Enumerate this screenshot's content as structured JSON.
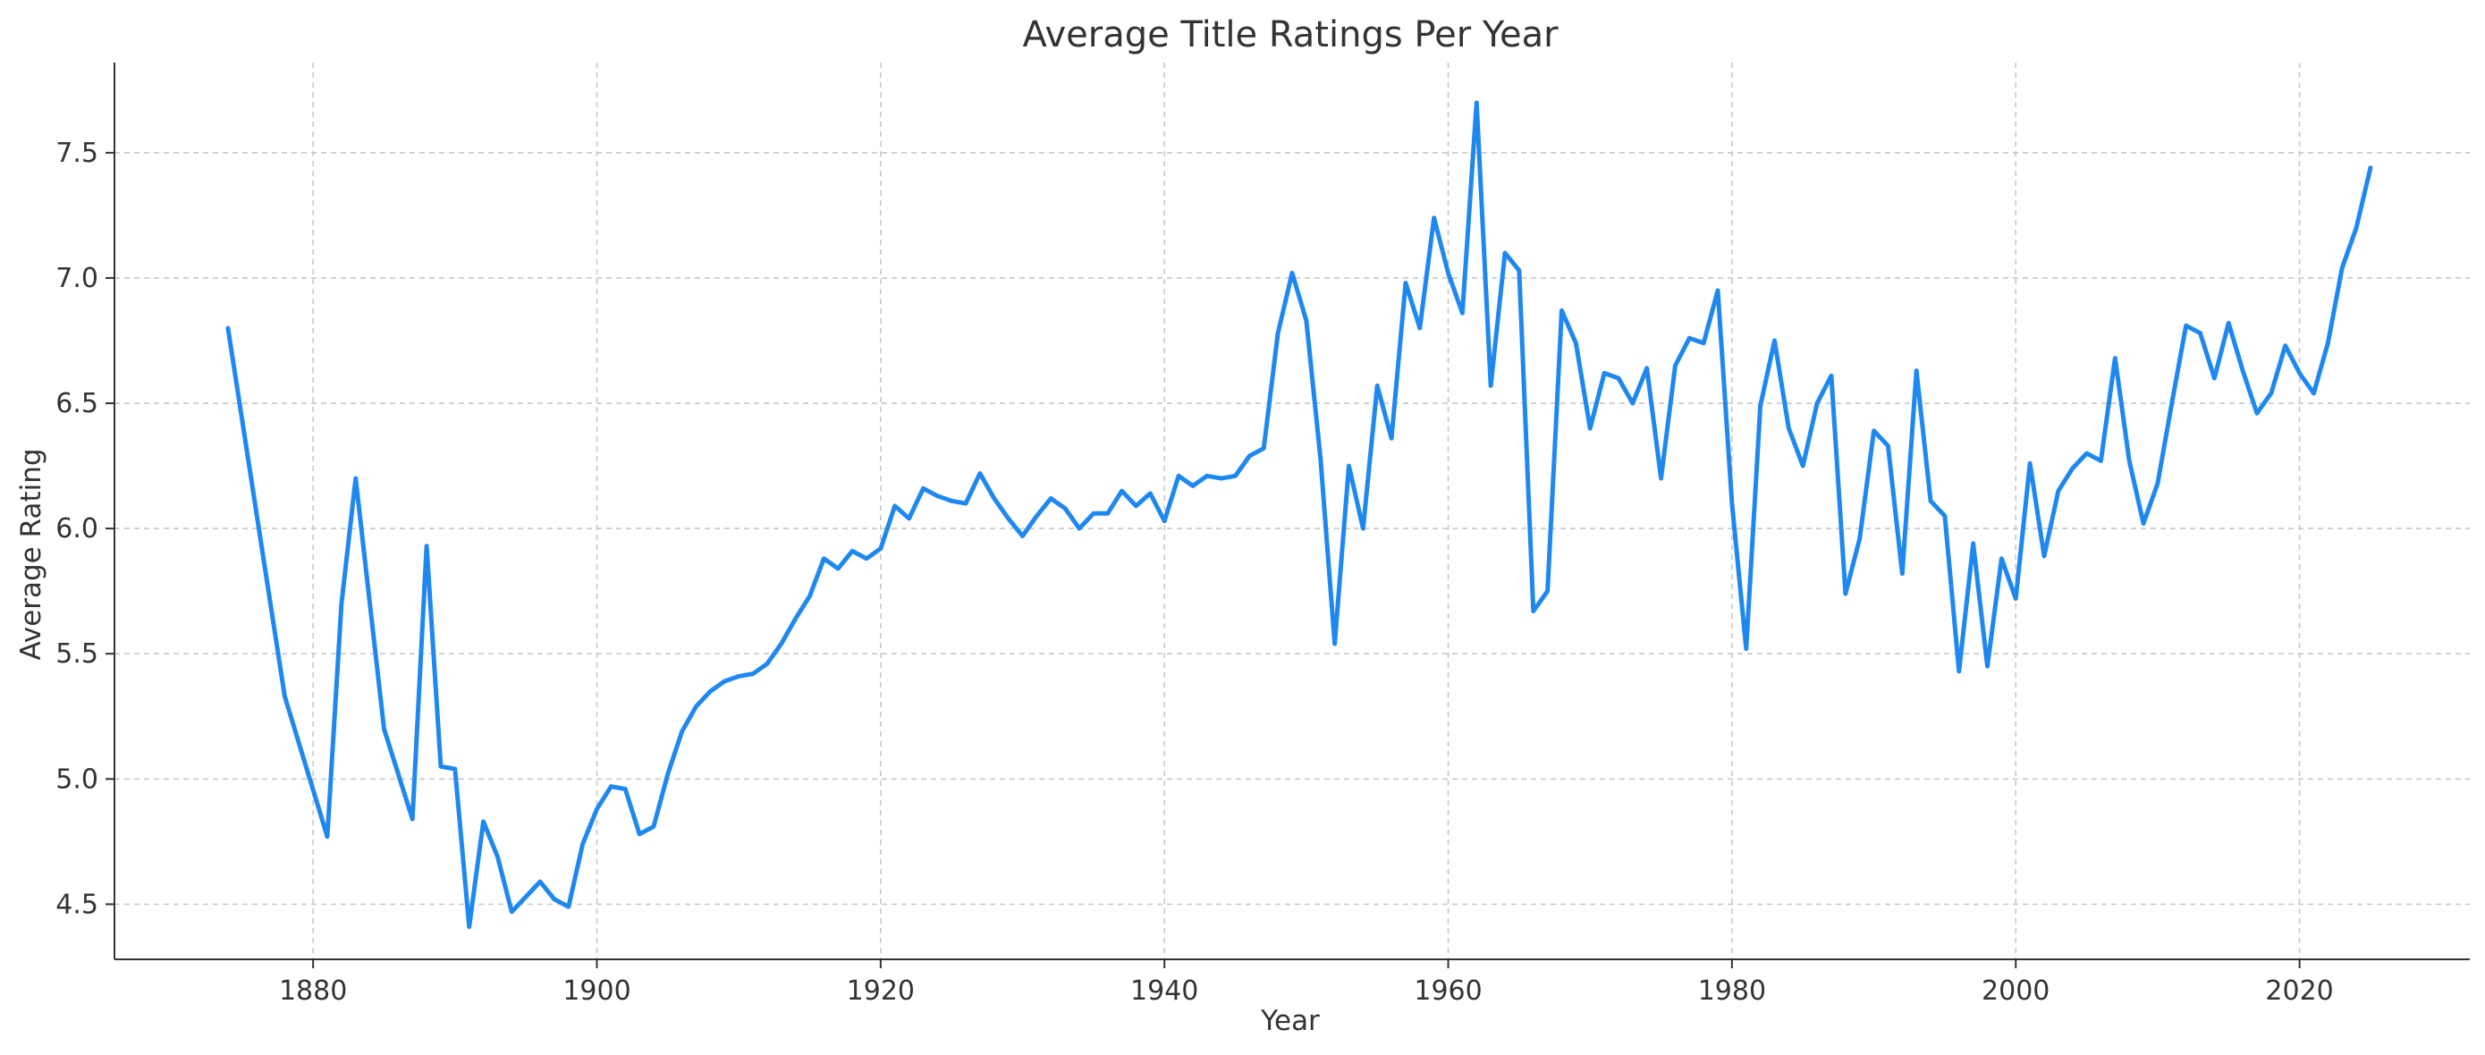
{
  "chart_data": {
    "type": "line",
    "title": "Average Title Ratings Per Year",
    "xlabel": "Year",
    "ylabel": "Average Rating",
    "xlim": [
      1866,
      2032
    ],
    "ylim": [
      4.28,
      7.86
    ],
    "xticks": [
      1880,
      1900,
      1920,
      1940,
      1960,
      1980,
      2000,
      2020
    ],
    "yticks": [
      4.5,
      5.0,
      5.5,
      6.0,
      6.5,
      7.0,
      7.5
    ],
    "ytick_labels": [
      "4.5",
      "5.0",
      "5.5",
      "6.0",
      "6.5",
      "7.0",
      "7.5"
    ],
    "grid": true,
    "color": "#1e88f0",
    "series": [
      {
        "x": [
          1874,
          1878,
          1881,
          1882,
          1883,
          1885,
          1887,
          1888,
          1889,
          1890,
          1891,
          1892,
          1893,
          1894,
          1896,
          1897,
          1898,
          1899,
          1900,
          1901,
          1902,
          1903,
          1904,
          1905,
          1906,
          1907,
          1908,
          1909,
          1910,
          1911,
          1912,
          1913,
          1914,
          1915,
          1916,
          1917,
          1918,
          1919,
          1920,
          1921,
          1922,
          1923,
          1924,
          1925,
          1926,
          1927,
          1928,
          1929,
          1930,
          1931,
          1932,
          1933,
          1934,
          1935,
          1936,
          1937,
          1938,
          1939,
          1940,
          1941,
          1942,
          1943,
          1944,
          1945,
          1946,
          1947,
          1948,
          1949,
          1950,
          1951,
          1952,
          1953,
          1954,
          1955,
          1956,
          1957,
          1958,
          1959,
          1960,
          1961,
          1962,
          1963,
          1964,
          1965,
          1966,
          1967,
          1968,
          1969,
          1970,
          1971,
          1972,
          1973,
          1974,
          1975,
          1976,
          1977,
          1978,
          1979,
          1980,
          1981,
          1982,
          1983,
          1984,
          1985,
          1986,
          1987,
          1988,
          1989,
          1990,
          1991,
          1992,
          1993,
          1994,
          1995,
          1996,
          1997,
          1998,
          1999,
          2000,
          2001,
          2002,
          2003,
          2004,
          2005,
          2006,
          2007,
          2008,
          2009,
          2010,
          2011,
          2012,
          2013,
          2014,
          2015,
          2016,
          2017,
          2018,
          2019,
          2020,
          2021,
          2022,
          2023,
          2024,
          2025
        ],
        "values": [
          6.8,
          5.33,
          4.77,
          5.7,
          6.2,
          5.2,
          4.84,
          5.93,
          5.05,
          5.04,
          4.41,
          4.83,
          4.69,
          4.47,
          4.59,
          4.52,
          4.49,
          4.74,
          4.88,
          4.97,
          4.96,
          4.78,
          4.81,
          5.02,
          5.19,
          5.29,
          5.35,
          5.39,
          5.41,
          5.42,
          5.46,
          5.54,
          5.64,
          5.73,
          5.88,
          5.84,
          5.91,
          5.88,
          5.92,
          6.09,
          6.04,
          6.16,
          6.13,
          6.11,
          6.1,
          6.22,
          6.12,
          6.04,
          5.97,
          6.05,
          6.12,
          6.08,
          6.0,
          6.06,
          6.06,
          6.15,
          6.09,
          6.14,
          6.03,
          6.21,
          6.17,
          6.21,
          6.2,
          6.21,
          6.29,
          6.32,
          6.78,
          7.02,
          6.83,
          6.28,
          5.54,
          6.25,
          6.0,
          6.57,
          6.36,
          6.98,
          6.8,
          7.24,
          7.02,
          6.86,
          7.7,
          6.57,
          7.1,
          7.03,
          5.67,
          5.75,
          6.87,
          6.74,
          6.4,
          6.62,
          6.6,
          6.5,
          6.64,
          6.2,
          6.65,
          6.76,
          6.74,
          6.95,
          6.1,
          5.52,
          6.49,
          6.75,
          6.4,
          6.25,
          6.5,
          6.61,
          5.74,
          5.96,
          6.39,
          6.33,
          5.82,
          6.63,
          6.11,
          6.05,
          5.43,
          5.94,
          5.45,
          5.88,
          5.72,
          6.26,
          5.89,
          6.15,
          6.24,
          6.3,
          6.27,
          6.68,
          6.27,
          6.02,
          6.18,
          6.5,
          6.81,
          6.78,
          6.6,
          6.82,
          6.63,
          6.46,
          6.54,
          6.73,
          6.62,
          6.54,
          6.74,
          7.04,
          7.2,
          7.44
        ]
      }
    ]
  }
}
